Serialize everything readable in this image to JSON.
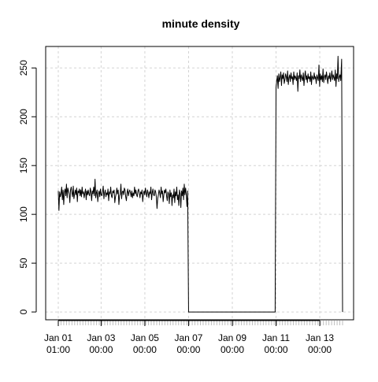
{
  "colors": {
    "background": "#ffffff",
    "line": "#000000",
    "axis": "#000000",
    "grid": "#d3d3d3",
    "minor_ticks": "#bdbdbd"
  },
  "chart_data": {
    "type": "line",
    "title": "minute density",
    "xlabel": "",
    "ylabel": "",
    "grid": true,
    "legend": "none",
    "x_range": [
      "2017-01-01 01:00",
      "2017-01-14 01:00"
    ],
    "ylim": [
      -8,
      272
    ],
    "y_ticks": [
      0,
      50,
      100,
      150,
      200,
      250
    ],
    "x_ticks": [
      {
        "x": "2017-01-01 01:00",
        "label": [
          "Jan 01",
          "01:00"
        ]
      },
      {
        "x": "2017-01-03 00:00",
        "label": [
          "Jan 03",
          "00:00"
        ]
      },
      {
        "x": "2017-01-05 00:00",
        "label": [
          "Jan 05",
          "00:00"
        ]
      },
      {
        "x": "2017-01-07 00:00",
        "label": [
          "Jan 07",
          "00:00"
        ]
      },
      {
        "x": "2017-01-09 00:00",
        "label": [
          "Jan 09",
          "00:00"
        ]
      },
      {
        "x": "2017-01-11 00:00",
        "label": [
          "Jan 11",
          "00:00"
        ]
      },
      {
        "x": "2017-01-13 00:00",
        "label": [
          "Jan 13",
          "00:00"
        ]
      }
    ],
    "series": [
      {
        "interval_hours": 1,
        "start": "2017-01-01 01:00",
        "segments": [
          {
            "from": "2017-01-01 01:00",
            "to": "2017-01-06 23:00",
            "values": [
              124,
              104,
              123,
              118,
              121,
              128,
              115,
              125,
              110,
              123,
              126,
              119,
              131,
              117,
              127,
              124,
              121,
              112,
              125,
              128,
              122,
              118,
              129,
              116,
              121,
              125,
              120,
              127,
              113,
              124,
              122,
              126,
              119,
              125,
              118,
              128,
              121,
              123,
              117,
              122,
              126,
              115,
              124,
              120,
              125,
              121,
              119,
              127,
              123,
              114,
              124,
              121,
              128,
              119,
              136,
              117,
              122,
              125,
              113,
              121,
              124,
              118,
              126,
              120,
              119,
              123,
              129,
              116,
              122,
              125,
              118,
              122,
              120,
              126,
              114,
              123,
              121,
              128,
              119,
              117,
              124,
              122,
              125,
              112,
              118,
              121,
              127,
              121,
              125,
              110,
              119,
              121,
              131,
              116,
              123,
              124,
              120,
              127,
              125,
              118,
              114,
              122,
              126,
              119,
              123,
              125,
              122,
              118,
              124,
              117,
              122,
              119,
              128,
              121,
              125,
              120,
              118,
              124,
              126,
              122,
              117,
              123,
              121,
              125,
              113,
              121,
              124,
              120,
              127,
              122,
              118,
              125,
              122,
              117,
              123,
              121,
              128,
              115,
              122,
              126,
              120,
              119,
              125,
              123,
              118,
              106,
              116,
              120,
              125,
              122,
              117,
              128,
              121,
              124,
              113,
              120,
              125,
              122,
              126,
              119,
              114,
              123,
              121,
              111,
              125,
              118,
              122,
              109,
              120,
              117,
              126,
              112,
              123,
              119,
              128,
              115,
              120,
              109,
              125,
              121,
              107,
              124,
              119,
              127,
              115,
              131,
              120,
              127,
              120,
              108,
              124
            ]
          },
          {
            "from": "2017-01-07 00:00",
            "to": "2017-01-10 23:00",
            "values": [
              0
            ]
          },
          {
            "from": "2017-01-11 00:00",
            "to": "2017-01-13 23:00",
            "values": [
              230,
              237,
              242,
              229,
              244,
              236,
              240,
              246,
              232,
              243,
              239,
              245,
              234,
              238,
              244,
              241,
              236,
              247,
              233,
              240,
              243,
              236,
              245,
              239,
              241,
              233,
              246,
              238,
              242,
              240,
              237,
              245,
              226,
              242,
              239,
              248,
              236,
              243,
              240,
              237,
              245,
              232,
              241,
              247,
              238,
              242,
              235,
              244,
              239,
              241,
              236,
              246,
              233,
              242,
              240,
              238,
              245,
              239,
              241,
              234,
              243,
              240,
              237,
              253,
              231,
              244,
              238,
              242,
              236,
              249,
              235,
              241,
              243,
              238,
              246,
              240,
              234,
              242,
              239,
              245,
              236,
              241,
              247,
              238,
              243,
              240,
              237,
              248,
              231,
              244,
              239,
              262,
              236,
              241,
              243,
              237
            ]
          },
          {
            "from": "2017-01-14 00:00",
            "to": "2017-01-14 01:00",
            "values": [
              259,
              0
            ]
          }
        ]
      }
    ]
  }
}
